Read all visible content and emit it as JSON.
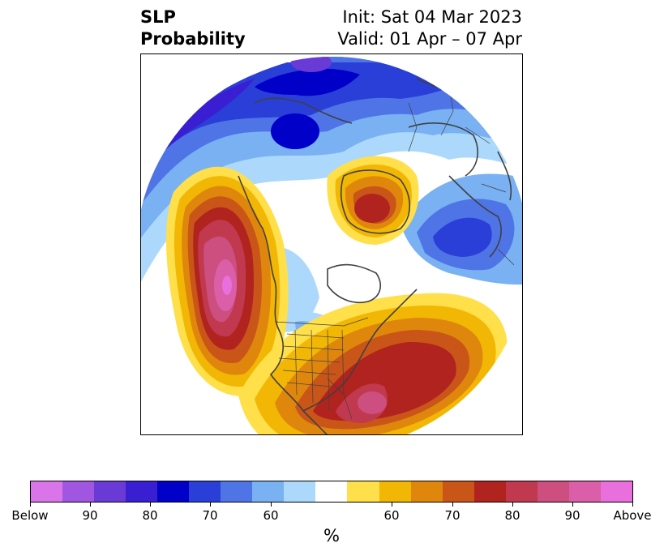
{
  "title": {
    "left_line1": "SLP",
    "left_line2": "Probability",
    "right_line1": "Init: Sat 04 Mar 2023",
    "right_line2": "Valid: 01 Apr – 07 Apr"
  },
  "colorbar": {
    "label": "%",
    "colors": [
      "#d975e8",
      "#a056e0",
      "#6a3ad6",
      "#3a1fd2",
      "#0000c8",
      "#2a3fd8",
      "#4f74e6",
      "#79b1f2",
      "#acd9fb",
      "#ffffff",
      "#ffe04a",
      "#f2b705",
      "#df870d",
      "#c95518",
      "#b0231e",
      "#c1394f",
      "#cc4f80",
      "#da5ea8",
      "#e86fdc"
    ],
    "ticks": [
      "Below",
      "90",
      "80",
      "70",
      "60",
      "60",
      "70",
      "80",
      "90",
      "Above"
    ]
  },
  "map": {
    "projection": "north polar stereographic",
    "variable": "sea level pressure probability",
    "below_color": "#0000c8",
    "above_color": "#b0231e"
  }
}
